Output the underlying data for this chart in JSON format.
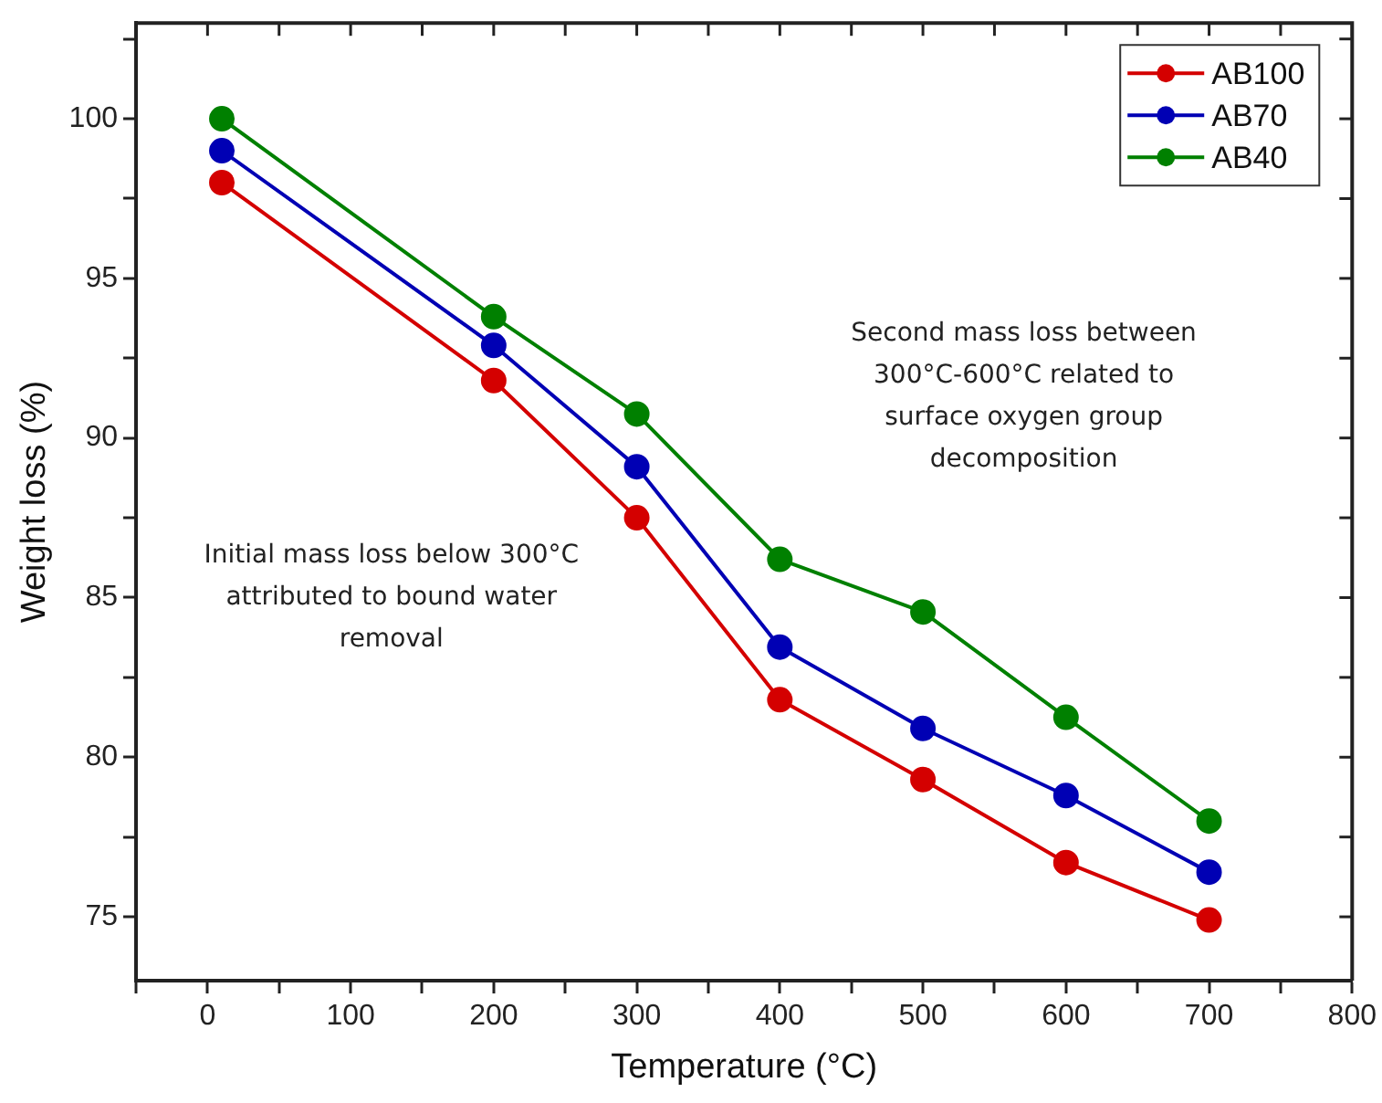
{
  "chart_data": {
    "type": "line",
    "xlabel": "Temperature (°C)",
    "ylabel": "Weight loss (%)",
    "x": [
      10,
      200,
      300,
      400,
      500,
      600,
      700
    ],
    "series": [
      {
        "name": "AB100",
        "color": "#d40000",
        "values": [
          98,
          91.8,
          87.5,
          81.8,
          79.3,
          76.7,
          74.9
        ]
      },
      {
        "name": "AB70",
        "color": "#0000b4",
        "values": [
          99,
          92.9,
          89.1,
          83.45,
          80.9,
          78.8,
          76.4
        ]
      },
      {
        "name": "AB40",
        "color": "#008000",
        "values": [
          100,
          93.8,
          90.75,
          86.2,
          84.55,
          81.25,
          78
        ]
      }
    ],
    "xlim": [
      -50,
      800
    ],
    "xticks": [
      {
        "value": -50,
        "label": null
      },
      0,
      {
        "value": 50,
        "label": null
      },
      100,
      {
        "value": 150,
        "label": null
      },
      200,
      {
        "value": 250,
        "label": null
      },
      300,
      {
        "value": 350,
        "label": null
      },
      400,
      {
        "value": 450,
        "label": null
      },
      500,
      {
        "value": 550,
        "label": null
      },
      600,
      {
        "value": 650,
        "label": null
      },
      700,
      {
        "value": 750,
        "label": null
      },
      800
    ],
    "ylim": [
      73,
      103
    ],
    "yticks": [
      75,
      {
        "value": 77.5,
        "label": null
      },
      80,
      {
        "value": 82.5,
        "label": null
      },
      85,
      {
        "value": 87.5,
        "label": null
      },
      90,
      {
        "value": 92.5,
        "label": null
      },
      95,
      {
        "value": 97.5,
        "label": null
      },
      100,
      {
        "value": 102.5,
        "label": null
      }
    ],
    "annotations": [
      "Initial mass loss below 300°C attributed to bound water removal",
      "Second mass loss between 300°C-600°C related to surface oxygen group decomposition"
    ],
    "grid": false,
    "legend": "top right",
    "marker": "circle",
    "line_style": "solid"
  }
}
